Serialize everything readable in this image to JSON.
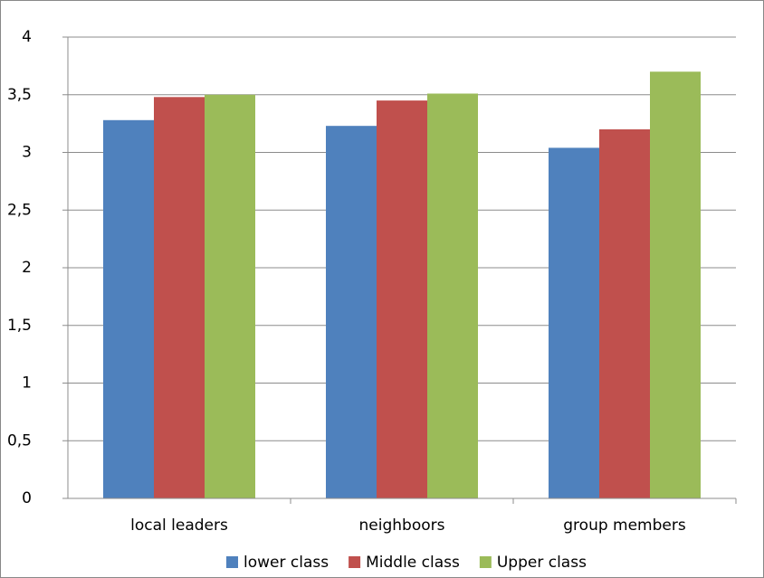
{
  "chart_data": {
    "type": "bar",
    "categories": [
      "local leaders",
      "neighboors",
      "group members"
    ],
    "series": [
      {
        "name": "lower class",
        "color": "#4f81bd",
        "values": [
          3.28,
          3.23,
          3.04
        ]
      },
      {
        "name": "Middle class",
        "color": "#c0504d",
        "values": [
          3.48,
          3.45,
          3.2
        ]
      },
      {
        "name": "Upper class",
        "color": "#9bbb59",
        "values": [
          3.5,
          3.51,
          3.7
        ]
      }
    ],
    "ylim": [
      0,
      4
    ],
    "yticks": [
      0,
      {
        "value": 0.5,
        "label": "0,5"
      },
      1,
      {
        "value": 1.5,
        "label": "1,5"
      },
      2,
      {
        "value": 2.5,
        "label": "2,5"
      },
      3,
      {
        "value": 3.5,
        "label": "3,5"
      },
      4
    ],
    "grid": true,
    "legend": "bottom"
  }
}
